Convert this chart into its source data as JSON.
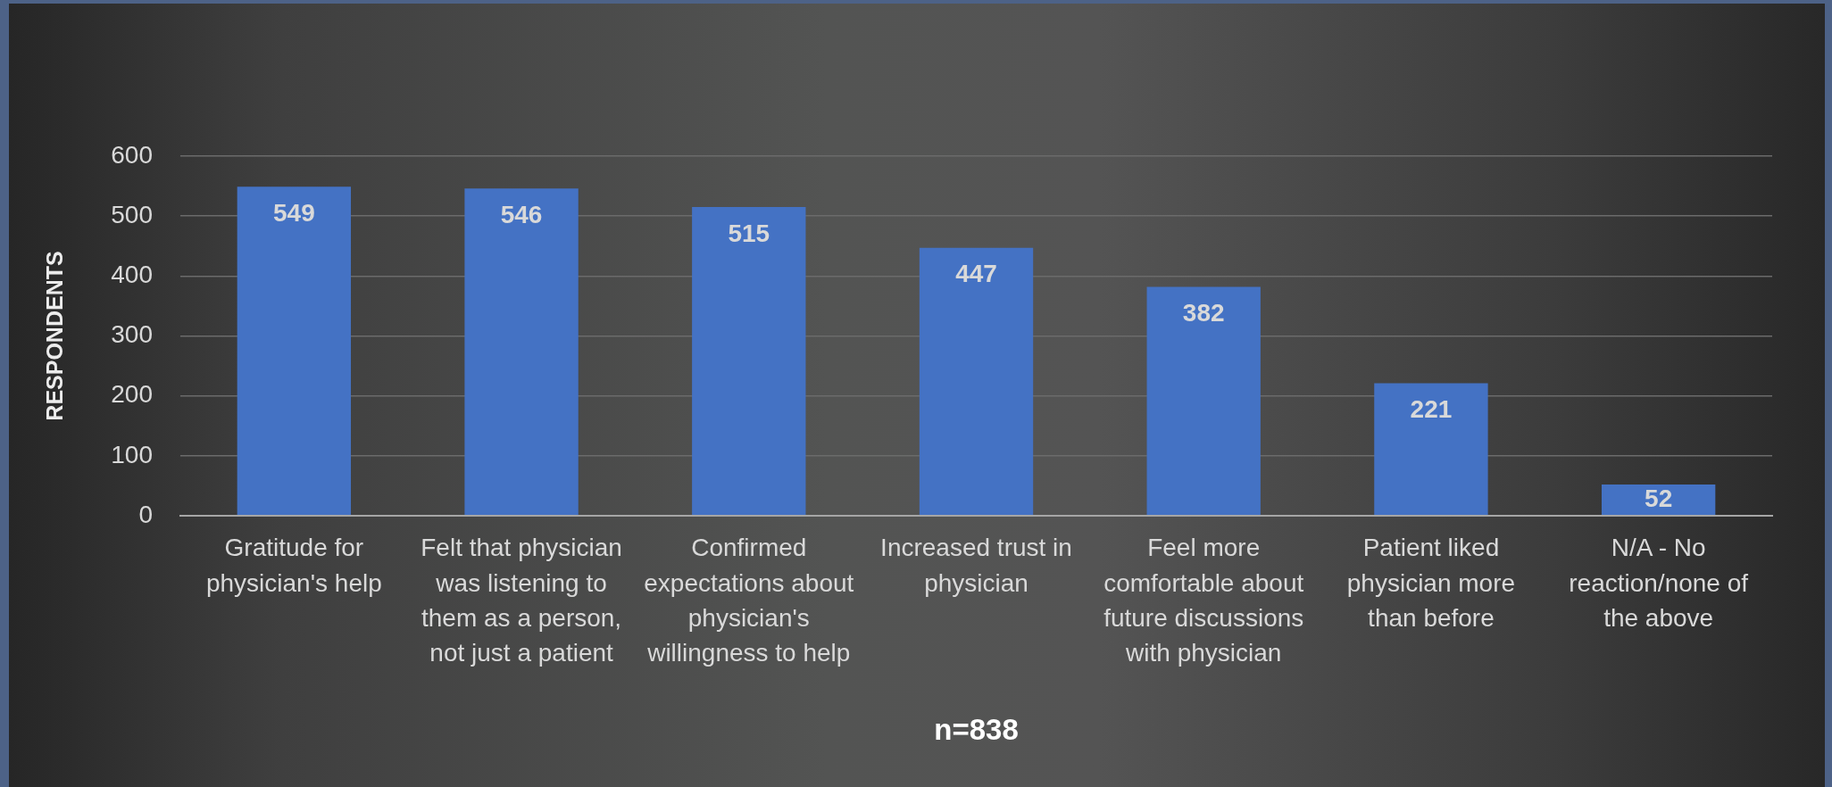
{
  "chart_data": {
    "type": "bar",
    "categories": [
      "Gratitude for physician's help",
      "Felt that physician was listening to them as a person, not just a patient",
      "Confirmed expectations about physician's willingness to help",
      "Increased trust in physician",
      "Feel more comfortable about future discussions with physician",
      "Patient liked physician more than before",
      "N/A - No reaction/none of the above"
    ],
    "values": [
      549,
      546,
      515,
      447,
      382,
      221,
      52
    ],
    "color": "#4472c4",
    "ylabel": "RESPONDENTS",
    "xlabel": "n=838",
    "ylim": [
      0,
      600
    ],
    "yticks": [
      0,
      100,
      200,
      300,
      400,
      500,
      600
    ],
    "grid": "y",
    "data_labels": true
  }
}
